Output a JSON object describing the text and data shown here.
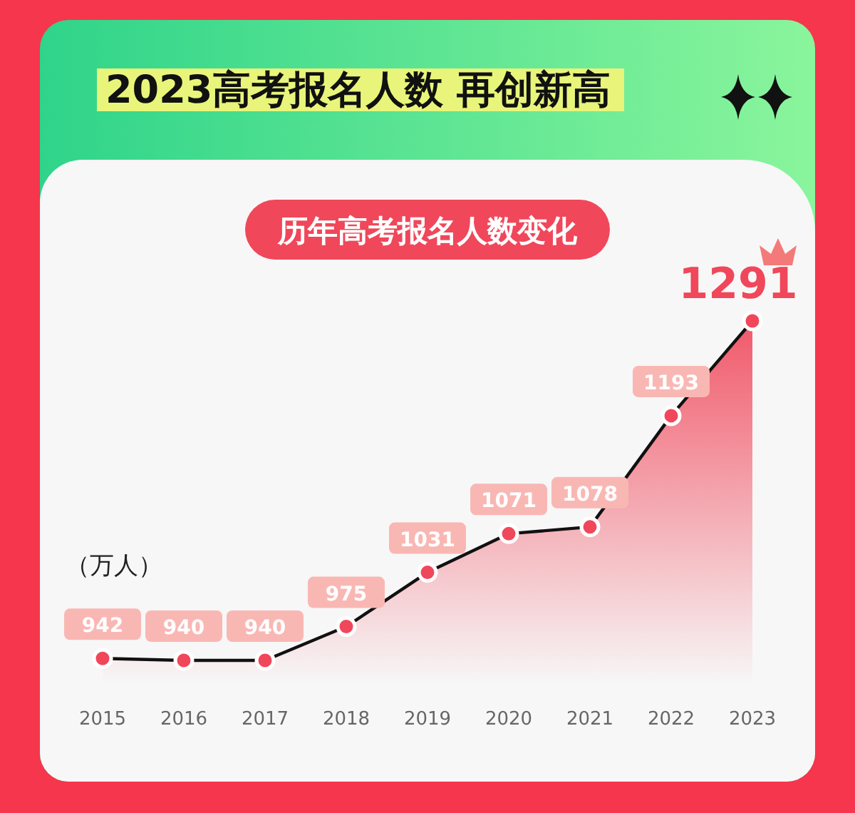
{
  "chart_data": {
    "type": "area",
    "title": "2023高考报名人数  再创新高",
    "subtitle": "历年高考报名人数变化",
    "ylabel": "（万人）",
    "categories": [
      "2015",
      "2016",
      "2017",
      "2018",
      "2019",
      "2020",
      "2021",
      "2022",
      "2023"
    ],
    "series": [
      {
        "color": "#f0475a",
        "values": [
          942,
          940,
          940,
          975,
          1031,
          1071,
          1078,
          1193,
          1291
        ]
      }
    ],
    "marker": "circle",
    "line_style": "solid",
    "data_labels": true
  }
}
